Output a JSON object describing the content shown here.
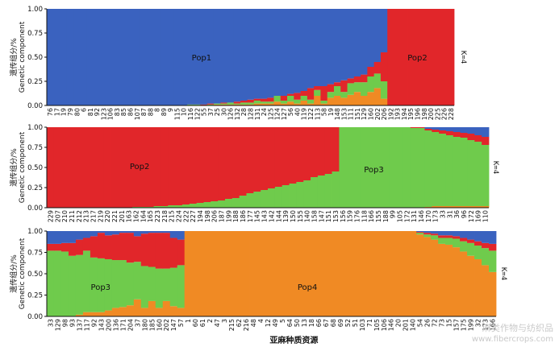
{
  "chart_data": [
    {
      "type": "bar",
      "stacked": true,
      "k_label": "K=4",
      "ylabel_cn": "遗传组分/%",
      "ylabel_en": "Genetic component",
      "yticks": [
        "0.00",
        "0.25",
        "0.50",
        "0.75",
        "1.00"
      ],
      "ylim": [
        0,
        1
      ],
      "pop_labels": [
        {
          "text": "Pop1",
          "at": 0.38,
          "y": 0.5
        },
        {
          "text": "Pop2",
          "at": 0.91,
          "y": 0.5
        }
      ],
      "categories": [
        "76",
        "17",
        "19",
        "79",
        "80",
        "6",
        "81",
        "92",
        "123",
        "106",
        "83",
        "85",
        "86",
        "107",
        "87",
        "88",
        "8",
        "89",
        "9",
        "115",
        "10",
        "116",
        "122",
        "55",
        "37",
        "25",
        "30",
        "126",
        "132",
        "28",
        "128",
        "131",
        "24",
        "125",
        "124",
        "127",
        "56",
        "40",
        "119",
        "122",
        "113",
        "58",
        "19",
        "148",
        "153",
        "111",
        "151",
        "129",
        "160",
        "202",
        "206",
        "192",
        "193",
        "194",
        "195",
        "196",
        "198",
        "200",
        "225",
        "226",
        "228"
      ],
      "series": [
        {
          "name": "Pop1",
          "color": "#3a62bf",
          "values": [
            1,
            1,
            1,
            1,
            1,
            1,
            1,
            1,
            1,
            1,
            1,
            1,
            1,
            1,
            1,
            1,
            1,
            1,
            1,
            1,
            1,
            0.99,
            0.99,
            0.99,
            0.98,
            0.98,
            0.97,
            0.97,
            0.96,
            0.95,
            0.94,
            0.93,
            0.93,
            0.92,
            0.9,
            0.9,
            0.88,
            0.87,
            0.85,
            0.82,
            0.8,
            0.8,
            0.78,
            0.76,
            0.74,
            0.72,
            0.7,
            0.68,
            0.6,
            0.55,
            0.45,
            0,
            0,
            0,
            0,
            0,
            0,
            0,
            0,
            0,
            0
          ]
        },
        {
          "name": "Pop2",
          "color": "#e1262a",
          "values": [
            0,
            0,
            0,
            0,
            0,
            0,
            0,
            0,
            0,
            0,
            0,
            0,
            0,
            0,
            0,
            0,
            0,
            0,
            0,
            0,
            0,
            0,
            0,
            0.01,
            0.01,
            0,
            0.01,
            0,
            0.02,
            0.02,
            0.03,
            0.02,
            0.03,
            0.04,
            0,
            0.05,
            0.02,
            0.07,
            0.05,
            0.12,
            0.04,
            0.15,
            0.08,
            0.04,
            0.12,
            0.05,
            0.06,
            0.08,
            0.1,
            0.12,
            0.3,
            1,
            1,
            1,
            1,
            1,
            1,
            1,
            1,
            1,
            1
          ]
        },
        {
          "name": "Pop3",
          "color": "#6fcb4c",
          "values": [
            0,
            0,
            0,
            0,
            0,
            0,
            0,
            0,
            0,
            0,
            0,
            0,
            0,
            0,
            0,
            0,
            0,
            0,
            0,
            0,
            0,
            0.01,
            0.01,
            0,
            0.01,
            0.01,
            0.01,
            0.02,
            0.01,
            0.02,
            0.02,
            0.03,
            0.02,
            0.02,
            0.06,
            0.03,
            0.06,
            0.04,
            0.05,
            0.04,
            0.06,
            0.03,
            0.06,
            0.1,
            0.06,
            0.12,
            0.1,
            0.14,
            0.16,
            0.15,
            0.18,
            0,
            0,
            0,
            0,
            0,
            0,
            0,
            0,
            0,
            0
          ]
        },
        {
          "name": "Pop4",
          "color": "#f08a24",
          "values": [
            0,
            0,
            0,
            0,
            0,
            0,
            0,
            0,
            0,
            0,
            0,
            0,
            0,
            0,
            0,
            0,
            0,
            0,
            0,
            0,
            0,
            0,
            0,
            0,
            0,
            0.01,
            0.01,
            0.01,
            0.01,
            0.01,
            0.01,
            0.02,
            0.02,
            0.02,
            0.04,
            0.02,
            0.04,
            0.02,
            0.05,
            0.02,
            0.1,
            0.02,
            0.08,
            0.1,
            0.08,
            0.11,
            0.14,
            0.1,
            0.14,
            0.18,
            0.07,
            0,
            0,
            0,
            0,
            0,
            0,
            0,
            0,
            0,
            0
          ]
        }
      ]
    },
    {
      "type": "bar",
      "stacked": true,
      "k_label": "K=4",
      "ylabel_cn": "遗传组分/%",
      "ylabel_en": "Genetic component",
      "yticks": [
        "0.00",
        "0.25",
        "0.50",
        "0.75",
        "1.00"
      ],
      "ylim": [
        0,
        1
      ],
      "pop_labels": [
        {
          "text": "Pop2",
          "at": 0.21,
          "y": 0.52
        },
        {
          "text": "Pop3",
          "at": 0.74,
          "y": 0.48
        }
      ],
      "categories": [
        "229",
        "207",
        "210",
        "211",
        "212",
        "213",
        "217",
        "219",
        "220",
        "221",
        "201",
        "163",
        "162",
        "164",
        "165",
        "223",
        "218",
        "215",
        "224",
        "222",
        "227",
        "194",
        "198",
        "206",
        "187",
        "199",
        "188",
        "186",
        "177",
        "145",
        "143",
        "142",
        "144",
        "139",
        "150",
        "155",
        "140",
        "158",
        "147",
        "151",
        "153",
        "156",
        "159",
        "176",
        "118",
        "166",
        "155",
        "188",
        "99",
        "105",
        "172",
        "131",
        "146",
        "170",
        "173",
        "33",
        "31",
        "36",
        "96",
        "172",
        "169",
        "110"
      ],
      "series": [
        {
          "name": "Pop1",
          "color": "#3a62bf",
          "values": [
            0,
            0,
            0,
            0,
            0,
            0,
            0,
            0,
            0,
            0,
            0,
            0,
            0,
            0,
            0,
            0,
            0,
            0,
            0,
            0,
            0,
            0,
            0,
            0,
            0,
            0,
            0,
            0,
            0,
            0,
            0,
            0,
            0,
            0,
            0,
            0,
            0,
            0,
            0,
            0,
            0,
            0,
            0,
            0,
            0,
            0,
            0,
            0,
            0,
            0,
            0,
            0,
            0,
            0.02,
            0.03,
            0.04,
            0.05,
            0.06,
            0.07,
            0.08,
            0.1,
            0.12
          ]
        },
        {
          "name": "Pop2",
          "color": "#e1262a",
          "values": [
            1,
            1,
            1,
            1,
            1,
            1,
            1,
            1,
            1,
            1,
            1,
            1,
            0.99,
            0.99,
            0.99,
            0.98,
            0.98,
            0.97,
            0.97,
            0.96,
            0.95,
            0.94,
            0.93,
            0.92,
            0.91,
            0.89,
            0.88,
            0.85,
            0.82,
            0.8,
            0.78,
            0.76,
            0.74,
            0.72,
            0.7,
            0.68,
            0.66,
            0.62,
            0.6,
            0.58,
            0.55,
            0,
            0,
            0,
            0,
            0,
            0,
            0,
            0,
            0,
            0,
            0.01,
            0.01,
            0.02,
            0.03,
            0.04,
            0.05,
            0.06,
            0.06,
            0.08,
            0.08,
            0.1
          ]
        },
        {
          "name": "Pop3",
          "color": "#6fcb4c",
          "values": [
            0,
            0,
            0,
            0,
            0,
            0,
            0,
            0,
            0,
            0,
            0,
            0,
            0.01,
            0.01,
            0.01,
            0.02,
            0.02,
            0.03,
            0.03,
            0.04,
            0.05,
            0.06,
            0.07,
            0.08,
            0.09,
            0.11,
            0.12,
            0.15,
            0.18,
            0.2,
            0.22,
            0.24,
            0.26,
            0.28,
            0.3,
            0.32,
            0.34,
            0.38,
            0.4,
            0.42,
            0.45,
            1,
            1,
            1,
            1,
            1,
            1,
            1,
            1,
            1,
            1,
            0.99,
            0.99,
            0.95,
            0.92,
            0.9,
            0.88,
            0.86,
            0.85,
            0.82,
            0.8,
            0.76
          ]
        },
        {
          "name": "Pop4",
          "color": "#f08a24",
          "values": [
            0,
            0,
            0,
            0,
            0,
            0,
            0,
            0,
            0,
            0,
            0,
            0,
            0,
            0,
            0,
            0,
            0,
            0,
            0,
            0,
            0,
            0,
            0,
            0,
            0,
            0,
            0,
            0,
            0,
            0,
            0,
            0,
            0,
            0,
            0,
            0,
            0,
            0,
            0,
            0,
            0,
            0,
            0,
            0,
            0,
            0,
            0,
            0,
            0,
            0,
            0,
            0,
            0,
            0.01,
            0.02,
            0.02,
            0.02,
            0.02,
            0.02,
            0.02,
            0.02,
            0.02
          ]
        }
      ]
    },
    {
      "type": "bar",
      "stacked": true,
      "k_label": "K=4",
      "ylabel_cn": "遗传组分/%",
      "ylabel_en": "Genetic component",
      "yticks": [
        "0.00",
        "0.25",
        "0.50",
        "0.75",
        "1.00"
      ],
      "ylim": [
        0,
        1
      ],
      "pop_labels": [
        {
          "text": "Pop3",
          "at": 0.12,
          "y": 0.35
        },
        {
          "text": "Pop4",
          "at": 0.58,
          "y": 0.35
        }
      ],
      "xtitle": "亚麻种质资源",
      "categories": [
        "33",
        "129",
        "98",
        "93",
        "137",
        "117",
        "92",
        "143",
        "200",
        "136",
        "171",
        "204",
        "37",
        "180",
        "185",
        "160",
        "202",
        "147",
        "57",
        "1",
        "60",
        "61",
        "2",
        "47",
        "3",
        "215",
        "62",
        "216",
        "48",
        "4",
        "12",
        "49",
        "5",
        "64",
        "50",
        "13",
        "18",
        "66",
        "67",
        "68",
        "69",
        "52",
        "51",
        "103",
        "71",
        "105",
        "106",
        "146",
        "20",
        "201",
        "140",
        "54",
        "26",
        "72",
        "73",
        "15",
        "157",
        "175",
        "199",
        "32",
        "173",
        "166"
      ],
      "series": [
        {
          "name": "Pop1",
          "color": "#3a62bf",
          "values": [
            0.15,
            0.15,
            0.14,
            0.14,
            0.1,
            0.08,
            0.06,
            0.02,
            0.05,
            0.04,
            0.02,
            0.02,
            0.06,
            0.03,
            0.02,
            0.02,
            0.02,
            0.08,
            0.1,
            0,
            0,
            0,
            0,
            0,
            0,
            0,
            0,
            0,
            0,
            0,
            0,
            0,
            0,
            0,
            0,
            0,
            0,
            0,
            0,
            0,
            0,
            0,
            0,
            0,
            0,
            0,
            0,
            0,
            0,
            0,
            0,
            0.01,
            0.02,
            0.03,
            0.05,
            0.05,
            0.06,
            0.08,
            0.1,
            0.12,
            0.14,
            0.15
          ]
        },
        {
          "name": "Pop2",
          "color": "#e1262a",
          "values": [
            0.08,
            0.08,
            0.1,
            0.15,
            0.18,
            0.15,
            0.25,
            0.3,
            0.28,
            0.3,
            0.32,
            0.35,
            0.3,
            0.38,
            0.4,
            0.42,
            0.42,
            0.35,
            0.3,
            0,
            0,
            0,
            0,
            0,
            0,
            0,
            0,
            0,
            0,
            0,
            0,
            0,
            0,
            0,
            0,
            0,
            0,
            0,
            0,
            0,
            0,
            0,
            0,
            0,
            0,
            0,
            0,
            0,
            0,
            0,
            0,
            0.01,
            0.02,
            0.02,
            0.03,
            0.03,
            0.03,
            0.04,
            0.04,
            0.05,
            0.06,
            0.08
          ]
        },
        {
          "name": "Pop3",
          "color": "#6fcb4c",
          "values": [
            0.77,
            0.77,
            0.76,
            0.71,
            0.7,
            0.72,
            0.64,
            0.63,
            0.6,
            0.56,
            0.55,
            0.5,
            0.44,
            0.49,
            0.4,
            0.46,
            0.38,
            0.45,
            0.5,
            0,
            0,
            0,
            0,
            0,
            0,
            0,
            0,
            0,
            0,
            0,
            0,
            0,
            0,
            0,
            0,
            0,
            0,
            0,
            0,
            0,
            0,
            0,
            0,
            0,
            0,
            0,
            0,
            0,
            0,
            0,
            0,
            0.02,
            0.03,
            0.05,
            0.07,
            0.08,
            0.1,
            0.12,
            0.15,
            0.16,
            0.2,
            0.25
          ]
        },
        {
          "name": "Pop4",
          "color": "#f08a24",
          "values": [
            0,
            0,
            0,
            0,
            0.02,
            0.05,
            0.05,
            0.05,
            0.07,
            0.1,
            0.11,
            0.13,
            0.2,
            0.1,
            0.18,
            0.1,
            0.18,
            0.12,
            0.1,
            1,
            1,
            1,
            1,
            1,
            1,
            1,
            1,
            1,
            1,
            1,
            1,
            1,
            1,
            1,
            1,
            1,
            1,
            1,
            1,
            1,
            1,
            1,
            1,
            1,
            1,
            1,
            1,
            1,
            1,
            1,
            1,
            0.96,
            0.93,
            0.9,
            0.85,
            0.84,
            0.81,
            0.76,
            0.71,
            0.67,
            0.6,
            0.52
          ]
        }
      ]
    }
  ],
  "watermark_cn": "麻类作物与纺织品",
  "watermark_en": "www.fibercrops.com"
}
